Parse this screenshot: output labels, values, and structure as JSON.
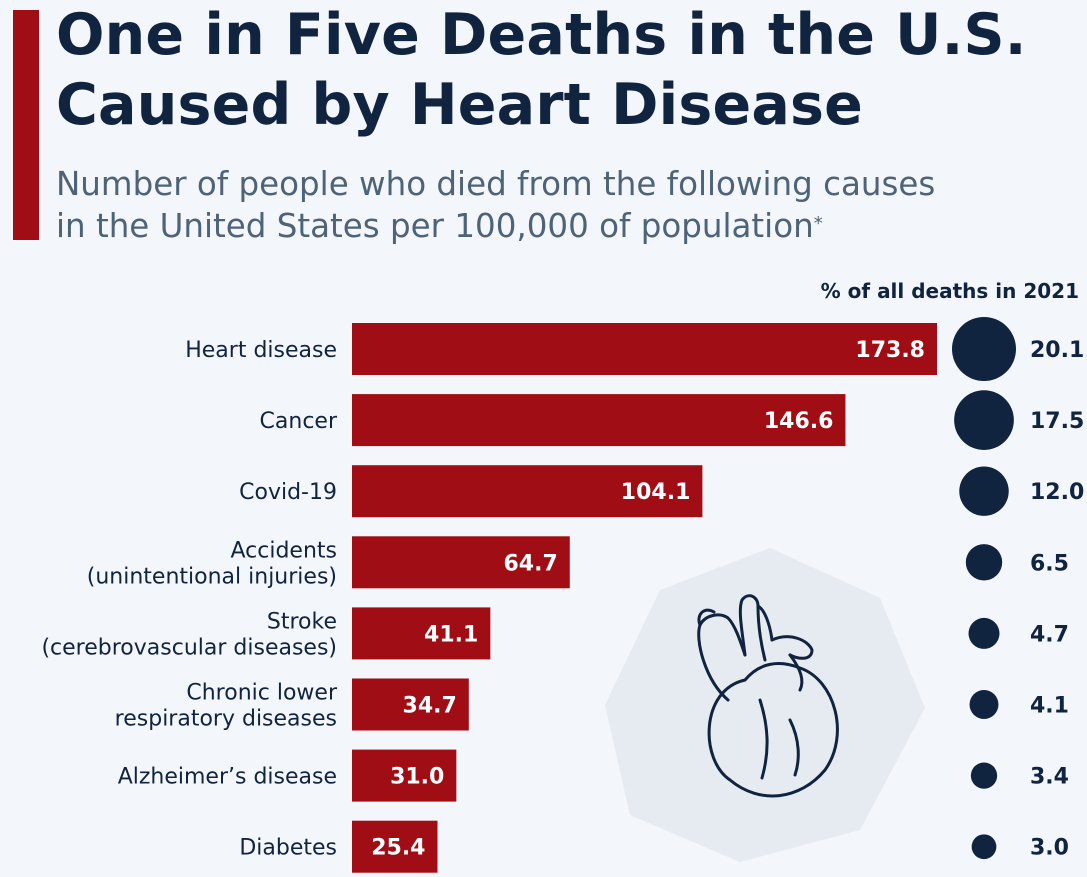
{
  "header": {
    "title_line1": "One in Five Deaths in the U.S.",
    "title_line2": "Caused by Heart Disease",
    "subtitle_line1": "Number of people who died from the following causes",
    "subtitle_line2": "in the United States per 100,000 of population",
    "subtitle_footnote_mark": "*"
  },
  "colors": {
    "bar": "#a10d14",
    "bubble": "#10233f",
    "title": "#10233f",
    "subtitle": "#4e6378",
    "background": "#f3f6fa",
    "icon_stroke": "#10233f"
  },
  "chart_data": {
    "type": "bar",
    "orientation": "horizontal",
    "categories": [
      [
        "Heart disease"
      ],
      [
        "Cancer"
      ],
      [
        "Covid-19"
      ],
      [
        "Accidents",
        "(unintentional injuries)"
      ],
      [
        "Stroke",
        "(cerebrovascular diseases)"
      ],
      [
        "Chronic lower",
        "respiratory diseases"
      ],
      [
        "Alzheimer’s disease"
      ],
      [
        "Diabetes"
      ]
    ],
    "values": [
      173.8,
      146.6,
      104.1,
      64.7,
      41.1,
      34.7,
      31.0,
      25.4
    ],
    "value_labels": [
      "173.8",
      "146.6",
      "104.1",
      "64.7",
      "41.1",
      "34.7",
      "31.0",
      "25.4"
    ],
    "share_header": "% of all deaths in 2021",
    "share_values": [
      20.1,
      17.5,
      12.0,
      6.5,
      4.7,
      4.1,
      3.4,
      3.0
    ],
    "share_labels": [
      "20.1",
      "17.5",
      "12.0",
      "6.5",
      "4.7",
      "4.1",
      "3.4",
      "3.0"
    ],
    "xlim": [
      0,
      173.8
    ],
    "grid": false,
    "legend": "none",
    "decoration": "heart-icon"
  }
}
